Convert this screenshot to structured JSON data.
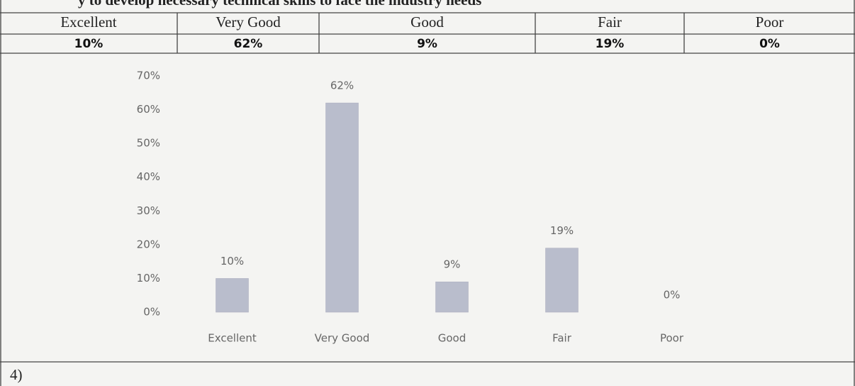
{
  "heading": "y to develop necessary technical skills to face the industry needs",
  "table": {
    "header": [
      "Excellent",
      "Very Good",
      "Good",
      "Fair",
      "Poor"
    ],
    "rows": [
      [
        "10%",
        "62%",
        "9%",
        "19%",
        "0%"
      ]
    ]
  },
  "chart_data": {
    "type": "bar",
    "categories": [
      "Excellent",
      "Very Good",
      "Good",
      "Fair",
      "Poor"
    ],
    "values": [
      10,
      62,
      9,
      19,
      0
    ],
    "value_labels": [
      "10%",
      "62%",
      "9%",
      "19%",
      "0%"
    ],
    "color": "#b9bdcc",
    "ylim": [
      0,
      70
    ],
    "yticks": [
      {
        "value": 0,
        "label": "0%"
      },
      {
        "value": 10,
        "label": "10%"
      },
      {
        "value": 20,
        "label": "20%"
      },
      {
        "value": 30,
        "label": "30%"
      },
      {
        "value": 40,
        "label": "40%"
      },
      {
        "value": 50,
        "label": "50%"
      },
      {
        "value": 60,
        "label": "60%"
      },
      {
        "value": 70,
        "label": "70%"
      }
    ]
  },
  "footer": "4)"
}
